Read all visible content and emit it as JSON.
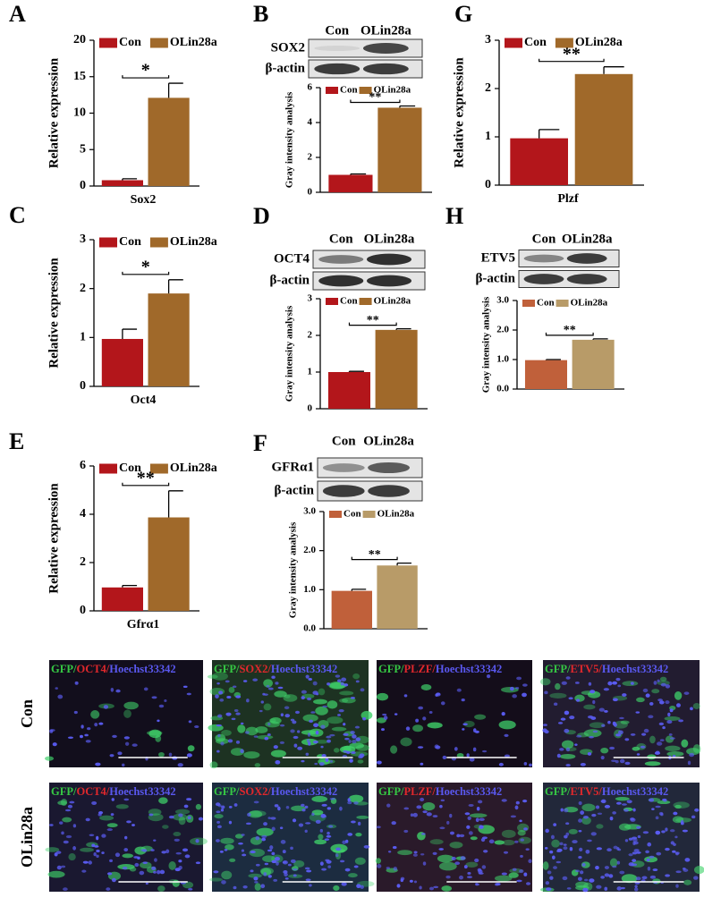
{
  "chart_data": [
    {
      "type": "bar",
      "label": "A",
      "ylabel": "Relative expression",
      "xlabel": "Sox2",
      "categories": [
        "Con",
        "OLin28a"
      ],
      "values": [
        0.8,
        12.1
      ],
      "errors": [
        0.2,
        2.0
      ],
      "colors": [
        "#b3161b",
        "#a0692a"
      ],
      "ylim": [
        0,
        20
      ],
      "yticks": [
        0,
        5,
        10,
        15,
        20
      ],
      "annotation": "*"
    },
    {
      "type": "bar",
      "ylabel": "Gray intensity analysis",
      "categories": [
        "Con",
        "OLin28a"
      ],
      "values": [
        1.0,
        4.85
      ],
      "errors": [
        0.05,
        0.1
      ],
      "colors": [
        "#b3161b",
        "#a0692a"
      ],
      "ylim": [
        0,
        6
      ],
      "yticks": [
        0,
        2,
        4,
        6
      ],
      "annotation": "**"
    },
    {
      "type": "bar",
      "label": "G",
      "ylabel": "Relative expression",
      "xlabel": "Plzf",
      "categories": [
        "Con",
        "OLin28a"
      ],
      "values": [
        0.97,
        2.3
      ],
      "errors": [
        0.18,
        0.15
      ],
      "colors": [
        "#b3161b",
        "#a0692a"
      ],
      "ylim": [
        0,
        3
      ],
      "yticks": [
        0,
        1,
        2,
        3
      ],
      "annotation": "**"
    },
    {
      "type": "bar",
      "label": "C",
      "ylabel": "Relative expression",
      "xlabel": "Oct4",
      "categories": [
        "Con",
        "OLin28a"
      ],
      "values": [
        0.97,
        1.9
      ],
      "errors": [
        0.2,
        0.28
      ],
      "colors": [
        "#b3161b",
        "#a0692a"
      ],
      "ylim": [
        0,
        3
      ],
      "yticks": [
        0,
        1,
        2,
        3
      ],
      "annotation": "*"
    },
    {
      "type": "bar",
      "ylabel": "Gray intensity analysis",
      "categories": [
        "Con",
        "OLin28a"
      ],
      "values": [
        1.0,
        2.15
      ],
      "errors": [
        0.02,
        0.03
      ],
      "colors": [
        "#b3161b",
        "#a0692a"
      ],
      "ylim": [
        0,
        3
      ],
      "yticks": [
        0,
        1,
        2,
        3
      ],
      "annotation": "**"
    },
    {
      "type": "bar",
      "ylabel": "Gray intensity analysis",
      "categories": [
        "Con",
        "OLin28a"
      ],
      "values": [
        0.98,
        1.67
      ],
      "errors": [
        0.02,
        0.03
      ],
      "colors": [
        "#c0603a",
        "#b89b68"
      ],
      "ylim": [
        0,
        3
      ],
      "yticks": [
        {
          "value": 0,
          "label": "0.0"
        },
        {
          "value": 1,
          "label": "1.0"
        },
        {
          "value": 2,
          "label": "2.0"
        },
        {
          "value": 3,
          "label": "3.0"
        }
      ],
      "annotation": "**"
    },
    {
      "type": "bar",
      "label": "E",
      "ylabel": "Relative expression",
      "xlabel": "Gfrα1",
      "categories": [
        "Con",
        "OLin28a"
      ],
      "values": [
        0.97,
        3.87
      ],
      "errors": [
        0.08,
        1.1
      ],
      "colors": [
        "#b3161b",
        "#a0692a"
      ],
      "ylim": [
        0,
        6
      ],
      "yticks": [
        0,
        2,
        4,
        6
      ],
      "annotation": "**"
    },
    {
      "type": "bar",
      "ylabel": "Gray intensity analysis",
      "categories": [
        "Con",
        "OLin28a"
      ],
      "values": [
        0.97,
        1.62
      ],
      "errors": [
        0.04,
        0.06
      ],
      "colors": [
        "#c0603a",
        "#b89b68"
      ],
      "ylim": [
        0,
        3
      ],
      "yticks": [
        {
          "value": 0,
          "label": "0.0"
        },
        {
          "value": 1,
          "label": "1.0"
        },
        {
          "value": 2,
          "label": "2.0"
        },
        {
          "value": 3,
          "label": "3.0"
        }
      ],
      "annotation": "**"
    }
  ],
  "blots": [
    {
      "label": "B",
      "lanes": [
        "Con",
        "OLin28a"
      ],
      "rows": [
        "SOX2",
        "β-actin"
      ]
    },
    {
      "label": "D",
      "lanes": [
        "Con",
        "OLin28a"
      ],
      "rows": [
        "OCT4",
        "β-actin"
      ]
    },
    {
      "label": "H",
      "lanes": [
        "Con",
        "OLin28a"
      ],
      "rows": [
        "ETV5",
        "β-actin"
      ]
    },
    {
      "label": "F",
      "lanes": [
        "Con",
        "OLin28a"
      ],
      "rows": [
        "GFRα1",
        "β-actin"
      ]
    }
  ],
  "images": {
    "rows": [
      "Con",
      "OLin28a"
    ],
    "caption_colors": [
      "#36c844",
      "#e0282c",
      "#5a58f0"
    ],
    "captions": [
      [
        [
          "GFP/",
          "OCT4/",
          "Hoechst33342"
        ],
        [
          "GFP/",
          "SOX2/",
          "Hoechst33342"
        ],
        [
          "GFP/",
          "PLZF/",
          "Hoechst33342"
        ],
        [
          "GFP/",
          "ETV5/",
          "Hoechst33342"
        ]
      ],
      [
        [
          "GFP/",
          "OCT4/",
          "Hoechst33342"
        ],
        [
          "GFP/",
          "SOX2/",
          "Hoechst33342"
        ],
        [
          "GFP/",
          "PLZF/",
          "Hoechst33342"
        ],
        [
          "GFP/",
          "ETV5/",
          "Hoechst33342"
        ]
      ]
    ]
  }
}
